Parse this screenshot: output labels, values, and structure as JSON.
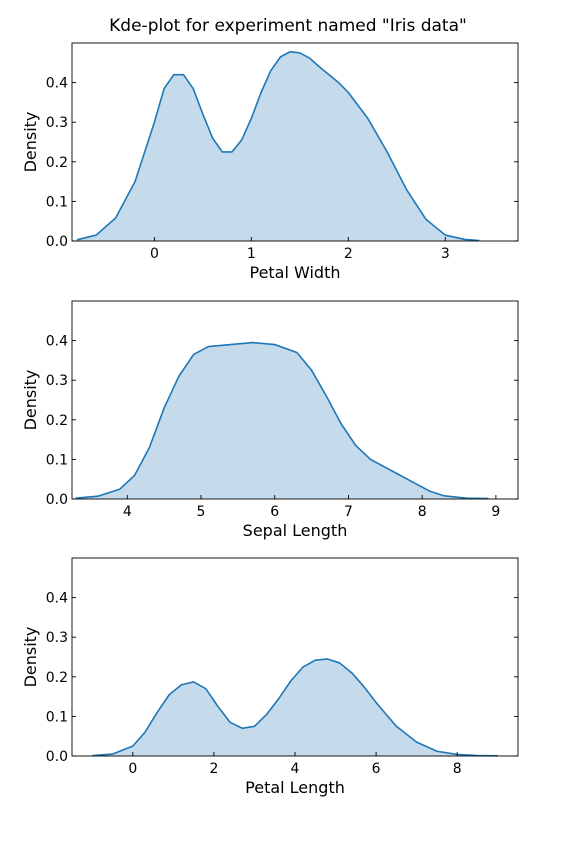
{
  "figure": {
    "title": "Kde-plot for experiment named \"Iris data\"",
    "colors": {
      "line": "#1f77b4",
      "fill": "#c5dbec",
      "axes": "#000000"
    }
  },
  "chart_data": [
    {
      "type": "area",
      "xlabel": "Petal Width",
      "ylabel": "Density",
      "xlim": [
        -0.85,
        3.75
      ],
      "ylim": [
        0.0,
        0.5
      ],
      "xticks": [
        0,
        1,
        2,
        3
      ],
      "yticks": [
        0.0,
        0.1,
        0.2,
        0.3,
        0.4
      ],
      "grid": false,
      "x": [
        -0.8,
        -0.6,
        -0.4,
        -0.2,
        0.0,
        0.1,
        0.2,
        0.3,
        0.4,
        0.5,
        0.6,
        0.7,
        0.8,
        0.9,
        1.0,
        1.1,
        1.2,
        1.3,
        1.4,
        1.5,
        1.6,
        1.7,
        1.8,
        1.9,
        2.0,
        2.2,
        2.4,
        2.6,
        2.8,
        3.0,
        3.2,
        3.35
      ],
      "y": [
        0.003,
        0.015,
        0.058,
        0.15,
        0.3,
        0.385,
        0.42,
        0.42,
        0.385,
        0.32,
        0.26,
        0.225,
        0.225,
        0.255,
        0.31,
        0.375,
        0.43,
        0.465,
        0.478,
        0.475,
        0.462,
        0.44,
        0.42,
        0.4,
        0.375,
        0.31,
        0.225,
        0.13,
        0.055,
        0.015,
        0.004,
        0.001
      ]
    },
    {
      "type": "area",
      "xlabel": "Sepal Length",
      "ylabel": "Density",
      "xlim": [
        3.25,
        9.3
      ],
      "ylim": [
        0.0,
        0.5
      ],
      "xticks": [
        4,
        5,
        6,
        7,
        8,
        9
      ],
      "yticks": [
        0.0,
        0.1,
        0.2,
        0.3,
        0.4
      ],
      "grid": false,
      "x": [
        3.3,
        3.6,
        3.9,
        4.1,
        4.3,
        4.5,
        4.7,
        4.9,
        5.1,
        5.4,
        5.7,
        6.0,
        6.3,
        6.5,
        6.7,
        6.9,
        7.1,
        7.3,
        7.5,
        7.7,
        7.9,
        8.1,
        8.3,
        8.6,
        8.9
      ],
      "y": [
        0.002,
        0.007,
        0.025,
        0.06,
        0.13,
        0.23,
        0.31,
        0.365,
        0.385,
        0.39,
        0.395,
        0.39,
        0.37,
        0.325,
        0.26,
        0.19,
        0.135,
        0.1,
        0.08,
        0.06,
        0.04,
        0.02,
        0.008,
        0.002,
        0.001
      ]
    },
    {
      "type": "area",
      "xlabel": "Petal Length",
      "ylabel": "Density",
      "xlim": [
        -1.5,
        9.5
      ],
      "ylim": [
        0.0,
        0.5
      ],
      "xticks": [
        0,
        2,
        4,
        6,
        8
      ],
      "yticks": [
        0.0,
        0.1,
        0.2,
        0.3,
        0.4
      ],
      "grid": false,
      "x": [
        -1.0,
        -0.5,
        0.0,
        0.3,
        0.6,
        0.9,
        1.2,
        1.5,
        1.8,
        2.1,
        2.4,
        2.7,
        3.0,
        3.3,
        3.6,
        3.9,
        4.2,
        4.5,
        4.8,
        5.1,
        5.4,
        5.7,
        6.0,
        6.5,
        7.0,
        7.5,
        8.0,
        8.5,
        9.0
      ],
      "y": [
        0.001,
        0.005,
        0.025,
        0.06,
        0.11,
        0.155,
        0.18,
        0.187,
        0.17,
        0.125,
        0.085,
        0.07,
        0.075,
        0.105,
        0.145,
        0.19,
        0.225,
        0.242,
        0.245,
        0.235,
        0.21,
        0.175,
        0.135,
        0.075,
        0.035,
        0.012,
        0.004,
        0.001,
        0.0005
      ]
    }
  ]
}
